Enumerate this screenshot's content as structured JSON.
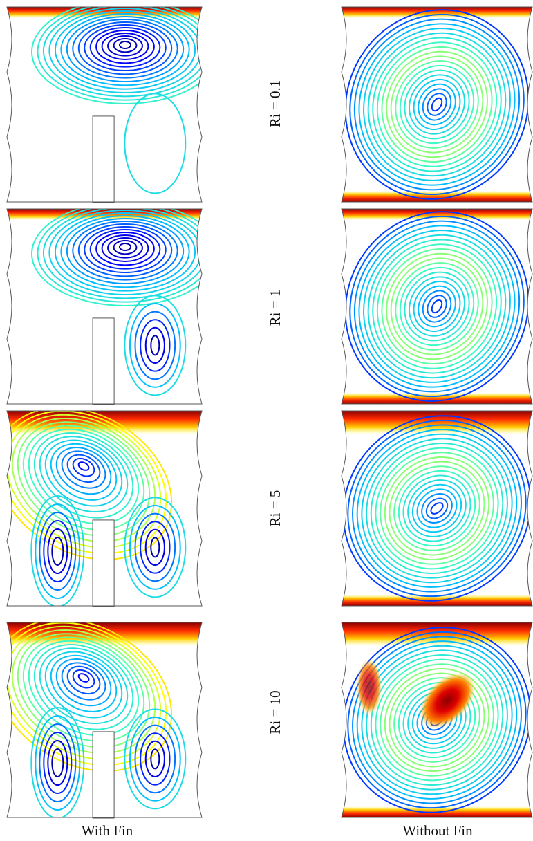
{
  "figure": {
    "columns": [
      "With Fin",
      "Without Fin"
    ],
    "rows": [
      {
        "label": "Ri = 0.1"
      },
      {
        "label": "Ri = 1"
      },
      {
        "label": "Ri = 5"
      },
      {
        "label": "Ri = 10"
      }
    ]
  },
  "colors": {
    "outline": "#555555",
    "colormap": [
      "#00007f",
      "#0000ff",
      "#00bfff",
      "#40ffbf",
      "#ffff00",
      "#ff8000",
      "#d00000",
      "#8b0000"
    ]
  }
}
